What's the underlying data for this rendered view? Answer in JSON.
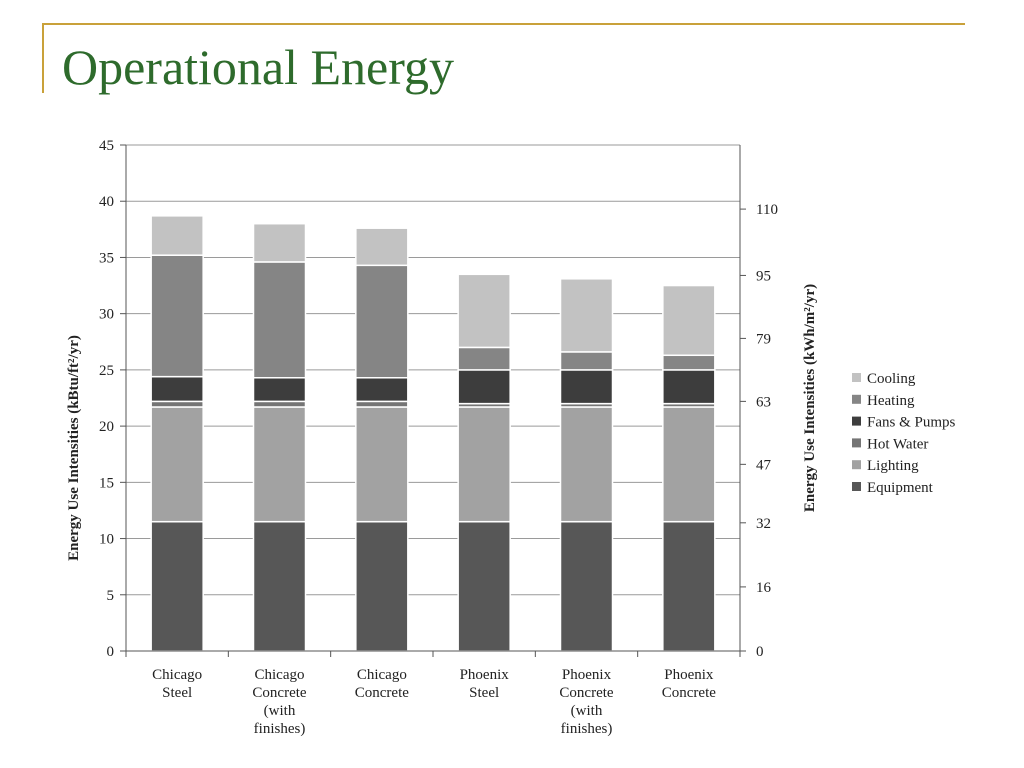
{
  "slide": {
    "title": "Operational Energy"
  },
  "chart_data": {
    "type": "bar",
    "stacked": true,
    "categories": [
      [
        "Chicago",
        "Steel"
      ],
      [
        "Chicago",
        "Concrete",
        "(with",
        "finishes)"
      ],
      [
        "Chicago",
        "Concrete"
      ],
      [
        "Phoenix",
        "Steel"
      ],
      [
        "Phoenix",
        "Concrete",
        "(with",
        "finishes)"
      ],
      [
        "Phoenix",
        "Concrete"
      ]
    ],
    "series": [
      {
        "name": "Equipment",
        "color": "#575757",
        "values": [
          11.5,
          11.5,
          11.5,
          11.5,
          11.5,
          11.5
        ]
      },
      {
        "name": "Lighting",
        "color": "#a2a2a2",
        "values": [
          10.2,
          10.2,
          10.2,
          10.2,
          10.2,
          10.2
        ]
      },
      {
        "name": "Hot Water",
        "color": "#757575",
        "values": [
          0.5,
          0.5,
          0.5,
          0.3,
          0.3,
          0.3
        ]
      },
      {
        "name": "Fans & Pumps",
        "color": "#3d3d3d",
        "values": [
          2.2,
          2.1,
          2.1,
          3.0,
          3.0,
          3.0
        ]
      },
      {
        "name": "Heating",
        "color": "#858585",
        "values": [
          10.8,
          10.3,
          10.0,
          2.0,
          1.6,
          1.3
        ]
      },
      {
        "name": "Cooling",
        "color": "#c2c2c2",
        "values": [
          3.5,
          3.4,
          3.3,
          6.5,
          6.5,
          6.2
        ]
      }
    ],
    "legend_order": [
      "Cooling",
      "Heating",
      "Fans & Pumps",
      "Hot Water",
      "Lighting",
      "Equipment"
    ],
    "ylabel": "Energy Use Intensities (kBtu/ft²/yr)",
    "y2label": "Energy Use Intensities (kWh/m²/yr)",
    "ylim": [
      0,
      45
    ],
    "yticks": [
      0,
      5,
      10,
      15,
      20,
      25,
      30,
      35,
      40,
      45
    ],
    "y2ticks": [
      {
        "label": "0",
        "value": 0
      },
      {
        "label": "16",
        "value": 5.7
      },
      {
        "label": "32",
        "value": 11.4
      },
      {
        "label": "47",
        "value": 16.6
      },
      {
        "label": "63",
        "value": 22.2
      },
      {
        "label": "79",
        "value": 27.8
      },
      {
        "label": "95",
        "value": 33.4
      },
      {
        "label": "110",
        "value": 39.3
      }
    ],
    "grid": true,
    "legend_position": "right"
  }
}
